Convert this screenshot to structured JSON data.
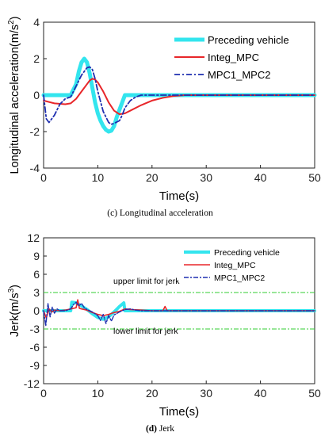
{
  "chart_data": [
    {
      "type": "line",
      "caption_letter": "(c)",
      "caption_text": " Longitudinal acceleration",
      "xlabel": "Time(s)",
      "ylabel_main": "Longitudinal acceleration(m/s",
      "ylabel_sup": "2",
      "ylabel_tail": ")",
      "xlim": [
        0,
        50
      ],
      "ylim": [
        -4,
        4
      ],
      "xticks": [
        "0",
        "10",
        "20",
        "30",
        "40",
        "50"
      ],
      "yticks": [
        "-4",
        "-2",
        "0",
        "2",
        "4"
      ],
      "legend_position": "top-right",
      "colors": {
        "preceding": "#33e5ee",
        "integ": "#e8262a",
        "mpc": "#1f2fb0"
      },
      "series": [
        {
          "name": "Preceding vehicle",
          "x": [
            0,
            5,
            6,
            6.5,
            7,
            7.5,
            8,
            8.5,
            9,
            9.5,
            10,
            10.5,
            11,
            11.5,
            12,
            12.5,
            13,
            13.5,
            14,
            14.5,
            15,
            50
          ],
          "y": [
            0,
            0,
            0.6,
            1.3,
            1.8,
            2.0,
            1.8,
            1.2,
            0.4,
            -0.4,
            -1.0,
            -1.4,
            -1.7,
            -1.9,
            -2.0,
            -1.95,
            -1.7,
            -1.2,
            -0.8,
            -0.4,
            0,
            0
          ]
        },
        {
          "name": "Integ_MPC",
          "x": [
            0,
            2,
            4,
            5,
            6,
            7,
            8,
            8.5,
            9,
            9.5,
            10,
            11,
            12,
            13,
            14,
            15,
            16,
            18,
            20,
            22,
            24,
            26,
            30,
            50
          ],
          "y": [
            -0.3,
            -0.45,
            -0.5,
            -0.45,
            -0.2,
            0.2,
            0.6,
            0.8,
            0.9,
            0.85,
            0.7,
            0.2,
            -0.4,
            -0.85,
            -1.05,
            -1.0,
            -0.85,
            -0.55,
            -0.3,
            -0.15,
            -0.05,
            0,
            0,
            0
          ]
        },
        {
          "name": "MPC1_MPC2",
          "x": [
            0,
            0.5,
            1,
            2,
            3,
            4,
            5,
            6,
            7,
            8,
            8.5,
            9,
            9.5,
            10,
            11,
            12,
            12.5,
            13,
            14,
            14.5,
            15,
            16,
            17,
            18,
            20,
            22,
            25,
            50
          ],
          "y": [
            0,
            -1.3,
            -1.5,
            -1.1,
            -0.5,
            -0.2,
            -0.1,
            0.5,
            1.1,
            1.5,
            1.55,
            1.4,
            0.9,
            0.2,
            -0.9,
            -1.5,
            -1.6,
            -1.55,
            -1.4,
            -1.1,
            -0.7,
            -0.3,
            -0.1,
            0,
            0,
            0,
            0,
            0
          ]
        }
      ]
    },
    {
      "type": "line",
      "caption_letter": "(d)",
      "caption_text": " Jerk",
      "xlabel": "Time(s)",
      "ylabel_main": "Jerk(m/s",
      "ylabel_sup": "3",
      "ylabel_tail": ")",
      "xlim": [
        0,
        50
      ],
      "ylim": [
        -12,
        12
      ],
      "xticks": [
        "0",
        "10",
        "20",
        "30",
        "40",
        "50"
      ],
      "yticks": [
        "-12",
        "-9",
        "-6",
        "-3",
        "0",
        "3",
        "6",
        "9",
        "12"
      ],
      "legend_position": "top-right",
      "colors": {
        "preceding": "#33e5ee",
        "integ": "#e8262a",
        "mpc": "#1f2fb0",
        "limit": "#33cc33"
      },
      "limits": {
        "upper": {
          "label": "upper limit for jerk",
          "value": 3
        },
        "lower": {
          "label": "lower limit for jerk",
          "value": -3
        }
      },
      "series": [
        {
          "name": "Preceding vehicle",
          "x": [
            0,
            5,
            5.2,
            6,
            7,
            8,
            9,
            10,
            11,
            12,
            13,
            14,
            14.8,
            15,
            50
          ],
          "y": [
            0,
            0,
            1.4,
            1.3,
            0.8,
            0.2,
            -0.5,
            -1.1,
            -1.4,
            -1.0,
            -0.2,
            0.7,
            1.3,
            0,
            0
          ]
        },
        {
          "name": "Integ_MPC",
          "x": [
            0,
            0.5,
            1,
            1.5,
            2,
            3,
            4,
            5,
            6,
            6.3,
            6.6,
            7,
            8,
            9,
            10,
            11,
            12,
            13,
            14,
            15,
            16,
            18,
            20,
            22,
            22.4,
            22.8,
            23,
            25,
            50
          ],
          "y": [
            0,
            -1.2,
            0.3,
            -0.2,
            0.1,
            0,
            0.1,
            0.3,
            0.5,
            1.8,
            0.4,
            0.3,
            0.1,
            -0.3,
            -0.6,
            -0.8,
            -0.6,
            -0.3,
            -0.1,
            0.3,
            0.2,
            0.1,
            0,
            0,
            0.7,
            0,
            0,
            0,
            0
          ]
        },
        {
          "name": "MPC1_MPC2",
          "x": [
            0,
            0.4,
            0.8,
            1.2,
            1.6,
            2,
            2.5,
            3,
            4,
            5,
            5.5,
            6,
            6.5,
            7,
            7.5,
            8,
            9,
            10,
            10.5,
            11,
            11.5,
            12,
            12.5,
            13,
            14,
            15,
            16,
            17,
            18,
            20,
            25,
            50
          ],
          "y": [
            0,
            -2.5,
            1.2,
            -1.0,
            0.6,
            -0.4,
            0.3,
            0,
            0,
            0.3,
            1.0,
            1.4,
            0.8,
            1.2,
            0.5,
            0.2,
            -0.2,
            -0.8,
            -1.6,
            -0.6,
            -2.1,
            -0.8,
            -1.7,
            -0.7,
            -0.2,
            0.2,
            0.3,
            0.1,
            0,
            0,
            0,
            0
          ]
        }
      ]
    }
  ]
}
